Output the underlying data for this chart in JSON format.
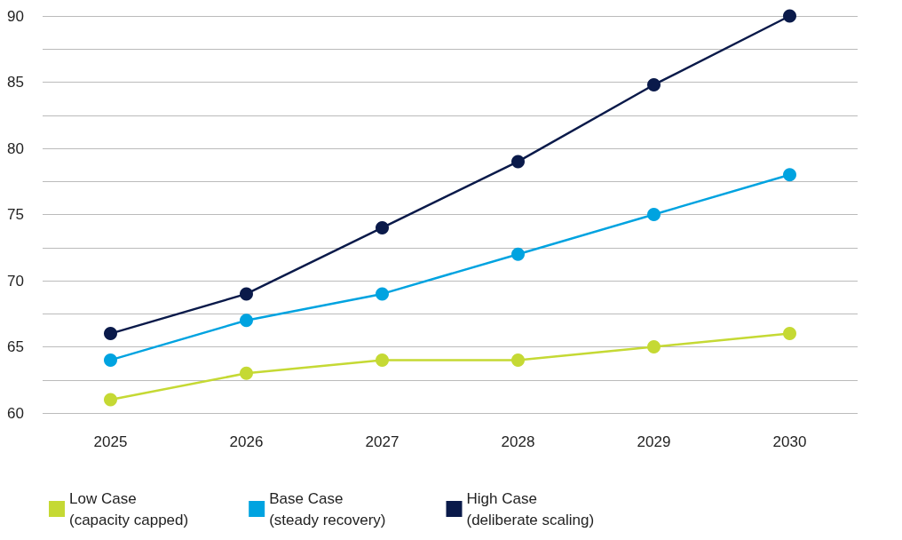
{
  "chart_data": {
    "type": "line",
    "categories": [
      "2025",
      "2026",
      "2027",
      "2028",
      "2029",
      "2030"
    ],
    "series": [
      {
        "name": "Low Case (capacity capped)",
        "color": "#c5d934",
        "values": [
          61,
          63,
          64,
          64,
          65,
          66
        ]
      },
      {
        "name": "Base Case (steady recovery)",
        "color": "#00a3e0",
        "values": [
          64,
          67,
          69,
          72,
          75,
          78
        ]
      },
      {
        "name": "High Case (deliberate scaling)",
        "color": "#0a1a4a",
        "values": [
          66,
          69,
          74,
          79,
          84.8,
          90
        ]
      }
    ],
    "ylim": [
      60,
      90
    ],
    "yticks": [
      60,
      {
        "value": 62.5,
        "label": null
      },
      65,
      {
        "value": 67.5,
        "label": null
      },
      70,
      {
        "value": 72.5,
        "label": null
      },
      75,
      {
        "value": 77.5,
        "label": null
      },
      80,
      {
        "value": 82.5,
        "label": null
      },
      85,
      {
        "value": 87.5,
        "label": null
      },
      90
    ],
    "grid": "y",
    "legend": "bottom left",
    "marker": "circle",
    "line_style": "solid"
  }
}
